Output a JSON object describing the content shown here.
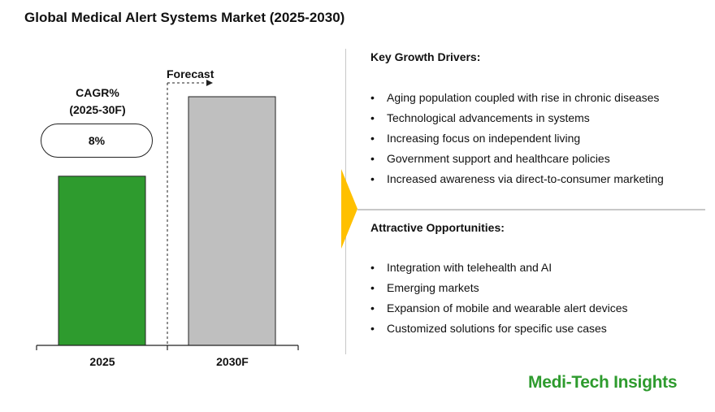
{
  "title": "Global Medical Alert Systems Market (2025-2030)",
  "chart_data": {
    "type": "bar",
    "categories": [
      "2025",
      "2030F"
    ],
    "values": [
      1.0,
      1.47
    ],
    "value_unit": "relative (2025 = 1; no axis values printed)",
    "colors": [
      "#2E9B2E",
      "#BFBFBF"
    ],
    "cagr_label_line1": "CAGR%",
    "cagr_label_line2": "(2025-30F)",
    "cagr_value": "8%",
    "forecast_label": "Forecast"
  },
  "drivers": {
    "heading": "Key Growth Drivers:",
    "items": [
      "Aging population coupled with rise in chronic diseases",
      "Technological advancements in systems",
      "Increasing focus on independent living",
      "Government support and healthcare policies",
      "Increased awareness via direct-to-consumer marketing"
    ]
  },
  "opportunities": {
    "heading": "Attractive Opportunities:",
    "items": [
      "Integration with telehealth and AI",
      "Emerging markets",
      "Expansion of mobile and wearable alert devices",
      "Customized solutions for specific use cases"
    ]
  },
  "brand": "Medi-Tech Insights",
  "accent_color": "#FFC000"
}
